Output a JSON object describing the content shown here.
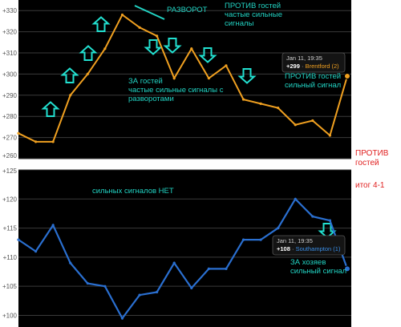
{
  "charts": [
    {
      "type": "line",
      "ylim": [
        260,
        335
      ],
      "y_ticks": [
        "+260",
        "+270",
        "+280",
        "+290",
        "+300",
        "+310",
        "+320",
        "+330"
      ],
      "line_color": "#f0a020",
      "points": [
        272,
        268,
        268,
        290,
        300,
        312,
        328,
        322,
        318,
        298,
        312,
        298,
        304,
        288,
        286,
        284,
        276,
        278,
        271,
        299
      ],
      "tooltip": {
        "date": "Jan 11, 19:35",
        "value": "+299",
        "sep": " · ",
        "name": "Brentford (2)",
        "name_color": "#f0a020"
      },
      "annotations": [
        "ПРОТИВ гостей\nчастые сильные\nсигналы",
        "РАЗВОРОТ",
        "ЗА гостей\nчастые сильные сигналы с\nразворотами",
        "ПРОТИВ гостей\nсильный сигнал"
      ],
      "arrow_up_indices": [
        2,
        3,
        4,
        5,
        6
      ],
      "arrow_down_indices": [
        8,
        9,
        10,
        11,
        12
      ]
    },
    {
      "type": "line",
      "ylim": [
        98,
        125
      ],
      "y_ticks": [
        "+100",
        "+105",
        "+110",
        "+115",
        "+120",
        "+125"
      ],
      "line_color": "#2a6fd0",
      "points": [
        113,
        111,
        115.5,
        109,
        105.5,
        105,
        99.5,
        103.5,
        104,
        109,
        104.7,
        108,
        108,
        113,
        113,
        115,
        120,
        117,
        116.3,
        108
      ],
      "tooltip": {
        "date": "Jan 11, 19:35",
        "value": "+108",
        "sep": " · ",
        "name": "Southampton (1)",
        "name_color": "#3a8fe8"
      },
      "annotations": [
        "сильных сигналов НЕТ",
        "ЗА хозяев\nсильный сигнал"
      ],
      "arrow_down_indices": [
        18
      ]
    }
  ],
  "side_notes": {
    "top": "ПРОТИВ\nгостей",
    "result": "итог 4-1"
  },
  "colors": {
    "panel": "#000000",
    "grid": "#3a3a3a",
    "axis_text": "#cccccc",
    "annotation": "#22d4c4",
    "arrow": "#22e0d0"
  }
}
